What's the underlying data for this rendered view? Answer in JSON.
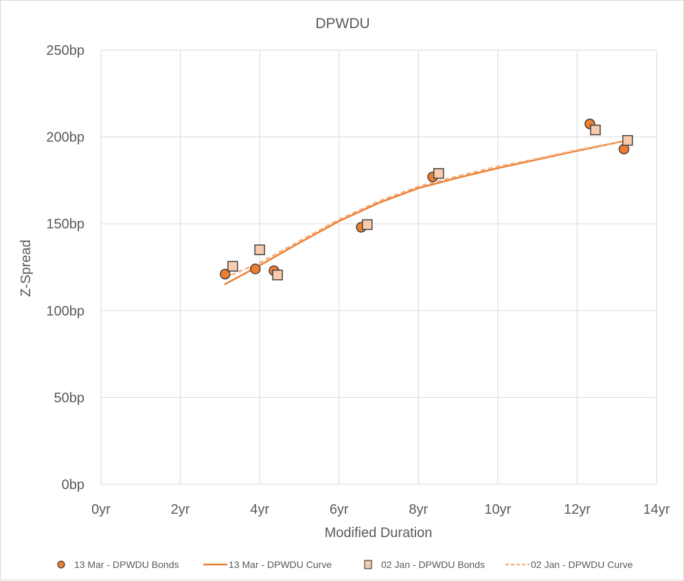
{
  "chart_data": {
    "type": "scatter",
    "title": "DPWDU",
    "xlabel": "Modified Duration",
    "ylabel": "Z-Spread",
    "xlim": [
      0,
      14
    ],
    "ylim": [
      0,
      250
    ],
    "x_ticks": [
      0,
      2,
      4,
      6,
      8,
      10,
      12,
      14
    ],
    "x_tick_labels": [
      "0yr",
      "2yr",
      "4yr",
      "6yr",
      "8yr",
      "10yr",
      "12yr",
      "14yr"
    ],
    "y_ticks": [
      0,
      50,
      100,
      150,
      200,
      250
    ],
    "y_tick_labels": [
      "0bp",
      "50bp",
      "100bp",
      "150bp",
      "200bp",
      "250bp"
    ],
    "grid": true,
    "legend_position": "bottom",
    "series": [
      {
        "name": "13 Mar - DPWDU Bonds",
        "kind": "markers",
        "marker": "circle",
        "color": "#ED7D31",
        "x": [
          3.13,
          3.89,
          4.36,
          6.56,
          8.36,
          12.32,
          13.18
        ],
        "y": [
          121,
          124,
          123,
          148,
          177,
          207.5,
          193
        ]
      },
      {
        "name": "13 Mar - DPWDU Curve",
        "kind": "line",
        "dash": false,
        "color": "#ED7D31",
        "x": [
          3.11,
          4.0,
          5.0,
          6.0,
          7.0,
          8.0,
          9.0,
          10.0,
          11.0,
          12.0,
          13.27
        ],
        "y": [
          115,
          126,
          139,
          151.5,
          162,
          170.5,
          176.5,
          182,
          187,
          192,
          198
        ]
      },
      {
        "name": "02 Jan - DPWDU Bonds",
        "kind": "markers",
        "marker": "square",
        "color": "#F8CBAD",
        "x": [
          3.32,
          4.0,
          4.45,
          6.71,
          8.51,
          12.46,
          13.27
        ],
        "y": [
          125.5,
          135,
          120.5,
          149.5,
          179,
          204,
          198
        ]
      },
      {
        "name": "02 Jan - DPWDU Curve",
        "kind": "line",
        "dash": true,
        "color": "#F4B183",
        "x": [
          3.28,
          4.0,
          5.0,
          6.0,
          7.0,
          8.0,
          9.0,
          10.0,
          11.0,
          12.0,
          13.27
        ],
        "y": [
          120.5,
          127.5,
          140,
          152.5,
          163,
          171.5,
          177.5,
          183,
          187.5,
          192.5,
          198
        ]
      }
    ]
  }
}
